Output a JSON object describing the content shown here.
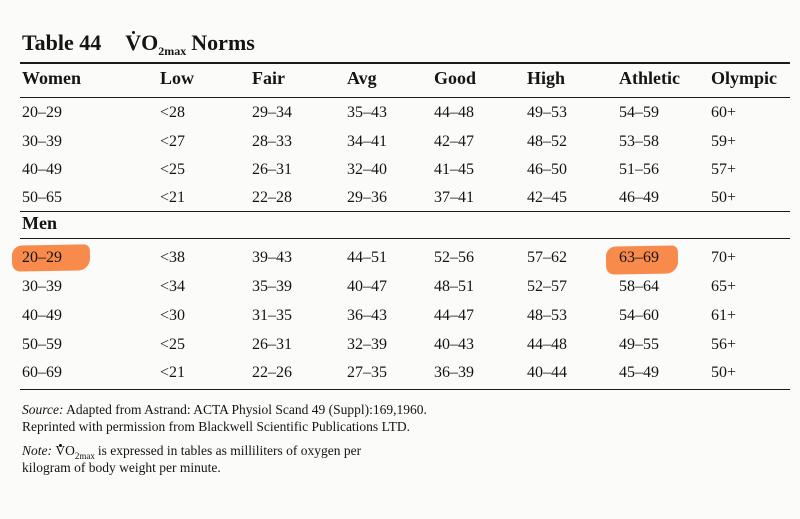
{
  "title": {
    "label": "Table 44",
    "v": "V",
    "o2": "O",
    "sub": "2max",
    "norms": "Norms"
  },
  "women": {
    "header": [
      "Women",
      "Low",
      "Fair",
      "Avg",
      "Good",
      "High",
      "Athletic",
      "Olympic"
    ],
    "rows": [
      [
        "20–29",
        "<28",
        "29–34",
        "35–43",
        "44–48",
        "49–53",
        "54–59",
        "60+"
      ],
      [
        "30–39",
        "<27",
        "28–33",
        "34–41",
        "42–47",
        "48–52",
        "53–58",
        "59+"
      ],
      [
        "40–49",
        "<25",
        "26–31",
        "32–40",
        "41–45",
        "46–50",
        "51–56",
        "57+"
      ],
      [
        "50–65",
        "<21",
        "22–28",
        "29–36",
        "37–41",
        "42–45",
        "46–49",
        "50+"
      ]
    ]
  },
  "men": {
    "header": "Men",
    "rows": [
      [
        "20–29",
        "<38",
        "39–43",
        "44–51",
        "52–56",
        "57–62",
        "63–69",
        "70+"
      ],
      [
        "30–39",
        "<34",
        "35–39",
        "40–47",
        "48–51",
        "52–57",
        "58–64",
        "65+"
      ],
      [
        "40–49",
        "<30",
        "31–35",
        "36–43",
        "44–47",
        "48–53",
        "54–60",
        "61+"
      ],
      [
        "50–59",
        "<25",
        "26–31",
        "32–39",
        "40–43",
        "44–48",
        "49–55",
        "56+"
      ],
      [
        "60–69",
        "<21",
        "22–26",
        "27–35",
        "36–39",
        "40–44",
        "45–49",
        "50+"
      ]
    ]
  },
  "highlight_color": "#f7752e",
  "footnotes": {
    "source_label": "Source:",
    "source_text": " Adapted from Astrand: ACTA Physiol Scand 49 (Suppl):169,1960.",
    "reprint": "Reprinted with permission from Blackwell Scientific Publications LTD.",
    "note_label": "Note:",
    "note_v": "V",
    "note_o": "O",
    "note_sub": "2max",
    "note_text": "is expressed in tables as milliliters of oxygen per",
    "note_text2": "kilogram of body weight per minute."
  }
}
